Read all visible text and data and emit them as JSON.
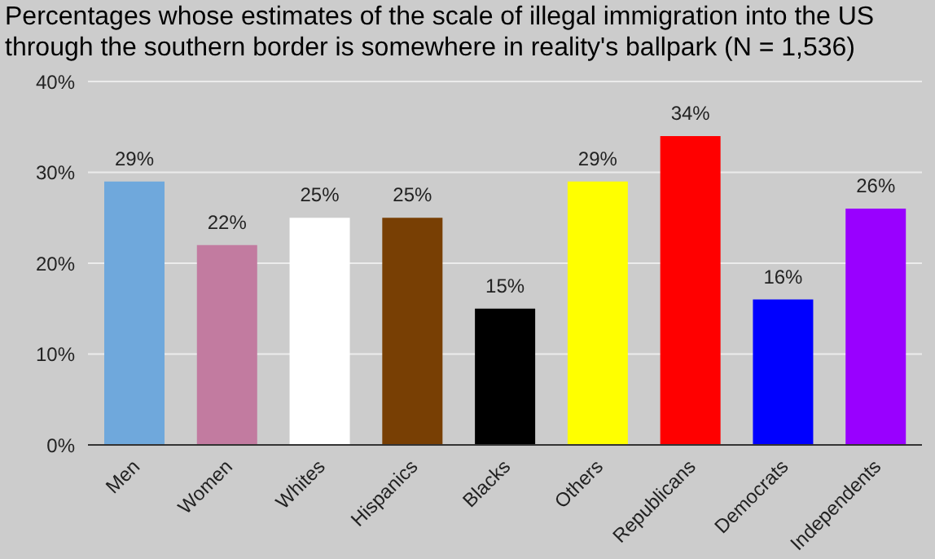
{
  "chart_data": {
    "type": "bar",
    "title": "Percentages whose estimates of the scale of illegal immigration into the US through the southern border is somewhere in reality's ballpark (N = 1,536)",
    "categories": [
      "Men",
      "Women",
      "Whites",
      "Hispanics",
      "Blacks",
      "Others",
      "Republicans",
      "Democrats",
      "Independents"
    ],
    "values": [
      29,
      22,
      25,
      25,
      15,
      29,
      34,
      16,
      26
    ],
    "colors": [
      "#6fa8dc",
      "#c27ba0",
      "#ffffff",
      "#783f04",
      "#000000",
      "#ffff00",
      "#ff0000",
      "#0000ff",
      "#9900ff"
    ],
    "value_labels": [
      "29%",
      "22%",
      "25%",
      "25%",
      "15%",
      "29%",
      "34%",
      "16%",
      "26%"
    ],
    "ylim": [
      0,
      40
    ],
    "yticks": [
      {
        "value": 0,
        "label": "0%"
      },
      {
        "value": 10,
        "label": "10%"
      },
      {
        "value": 20,
        "label": "20%"
      },
      {
        "value": 30,
        "label": "30%"
      },
      {
        "value": 40,
        "label": "40%"
      }
    ],
    "grid": "y"
  }
}
